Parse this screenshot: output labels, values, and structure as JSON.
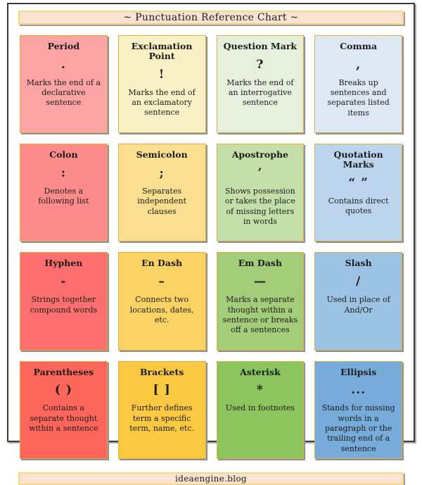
{
  "title": "~ Punctuation Reference Chart ~",
  "footer": "ideaengine.blog",
  "colors": {
    "frame_border": "#3b3b3b",
    "banner_background": "#fbe3d3",
    "banner_border": "#f3d682",
    "card_border": "#dfae45",
    "shadow": "#8f8f8f"
  },
  "cards": [
    {
      "name": "Period",
      "symbol": ".",
      "description": "Marks the end of a declarative sentence",
      "background": "#fca3a3"
    },
    {
      "name": "Exclamation Point",
      "symbol": "!",
      "description": "Marks the end of an exclamatory sentence",
      "background": "#faf0c5"
    },
    {
      "name": "Question Mark",
      "symbol": "?",
      "description": "Marks the end of an interrogative sentence",
      "background": "#e4f0db"
    },
    {
      "name": "Comma",
      "symbol": ",",
      "description": "Breaks up sentences and separates listed items",
      "background": "#dce9f5"
    },
    {
      "name": "Colon",
      "symbol": ":",
      "description": "Denotes a following list",
      "background": "#fd8b8b"
    },
    {
      "name": "Semicolon",
      "symbol": ";",
      "description": "Separates independent clauses",
      "background": "#fbdf90"
    },
    {
      "name": "Apostrophe",
      "symbol": "’",
      "description": "Shows possession or takes the place of missing letters in words",
      "background": "#c5dfaa"
    },
    {
      "name": "Quotation Marks",
      "symbol": "“ ”",
      "description": "Contains direct quotes",
      "background": "#bdd5ec"
    },
    {
      "name": "Hyphen",
      "symbol": "-",
      "description": "Strings together compound words",
      "background": "#fe6f6f"
    },
    {
      "name": "En Dash",
      "symbol": "–",
      "description": "Connects two locations, dates, etc.",
      "background": "#fbd364"
    },
    {
      "name": "Em Dash",
      "symbol": "—",
      "description": "Marks a separate thought within a sentence or breaks off a sentences",
      "background": "#a3cd79"
    },
    {
      "name": "Slash",
      "symbol": "/",
      "description": "Used in place of And/Or",
      "background": "#9dc3e4"
    },
    {
      "name": "Parentheses",
      "symbol": "( )",
      "description": "Contains a separate thought within a sentence",
      "background": "#fe655b"
    },
    {
      "name": "Brackets",
      "symbol": "[ ]",
      "description": "Further defines term a specific term, name, etc.",
      "background": "#fac841"
    },
    {
      "name": "Asterisk",
      "symbol": "*",
      "description": "Used in footnotes",
      "background": "#8cc45d"
    },
    {
      "name": "Ellipsis",
      "symbol": "...",
      "description": "Stands for missing words in a paragraph or the trailing end of a sentence",
      "background": "#77acda"
    }
  ]
}
